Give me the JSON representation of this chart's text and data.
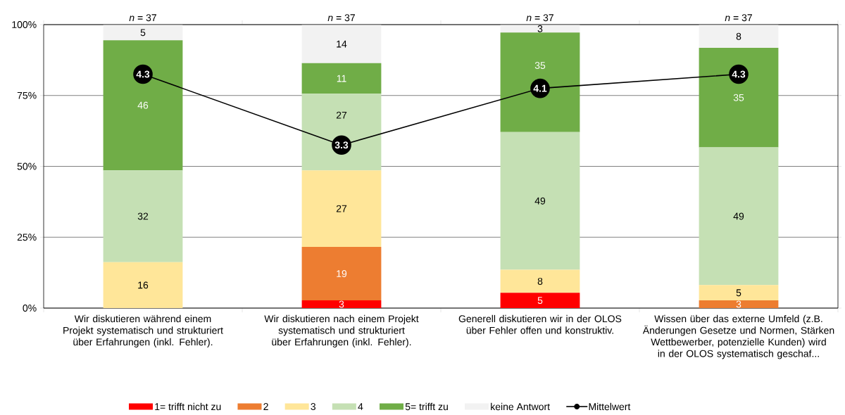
{
  "chart_data": {
    "type": "bar",
    "stacked": true,
    "categories": [
      "Wir diskutieren während einem Projekt systematisch und strukturiert über Erfahrungen (inkl. Fehler).",
      "Wir diskutieren nach einem Projekt systematisch und strukturiert über Erfahrungen (inkl. Fehler).",
      "Generell diskutieren wir in der OLOS über Fehler offen und konstruktiv.",
      "Wissen über das externe Umfeld (z.B. Änderungen Gesetze und Normen, Stärken Wettbewerber, potenzielle Kunden) wird in der OLOS systematisch geschaf..."
    ],
    "series": [
      {
        "name": "1= trifft nicht zu",
        "color": "#ff0000",
        "values": [
          0,
          2.7,
          5.4,
          0
        ],
        "value_labels": [
          null,
          "3",
          "5",
          null
        ]
      },
      {
        "name": "2",
        "color": "#ed7d31",
        "values": [
          0,
          18.9,
          0,
          2.7
        ],
        "value_labels": [
          null,
          "19",
          null,
          "3"
        ]
      },
      {
        "name": "3",
        "color": "#ffe699",
        "values": [
          16.2,
          27.0,
          8.1,
          5.4
        ],
        "value_labels": [
          "16",
          "27",
          "8",
          "5"
        ]
      },
      {
        "name": "4",
        "color": "#c5e0b4",
        "values": [
          32.4,
          27.0,
          48.6,
          48.6
        ],
        "value_labels": [
          "32",
          "27",
          "49",
          "49"
        ]
      },
      {
        "name": "5= trifft zu",
        "color": "#70ad47",
        "values": [
          45.9,
          10.8,
          35.1,
          35.1
        ],
        "value_labels": [
          "46",
          "11",
          "35",
          "35"
        ]
      },
      {
        "name": "keine Antwort",
        "color": "#f2f2f2",
        "values": [
          5.4,
          13.5,
          2.7,
          8.1
        ],
        "value_labels": [
          "5",
          "14",
          "3",
          "8"
        ]
      },
      {
        "name": "Mittelwert",
        "type": "line",
        "axis": "y2",
        "color": "#000000",
        "marker": "circle",
        "line_style": "solid",
        "values": [
          4.3,
          3.3,
          4.1,
          4.3
        ],
        "value_labels": [
          "4.3",
          "3.3",
          "4.1",
          "4.3"
        ]
      }
    ],
    "ylim": [
      0,
      100
    ],
    "yticks": [
      {
        "value": 0,
        "label": "0%"
      },
      {
        "value": 25,
        "label": "25%"
      },
      {
        "value": 50,
        "label": "50%"
      },
      {
        "value": 75,
        "label": "75%"
      },
      {
        "value": 100,
        "label": "100%"
      }
    ],
    "y2lim": [
      1,
      5
    ],
    "grid": "y",
    "legend": "bottom",
    "annotations": [
      "*n* = 37",
      "*n* = 37",
      "*n* = 37",
      "*n* = 37"
    ]
  }
}
